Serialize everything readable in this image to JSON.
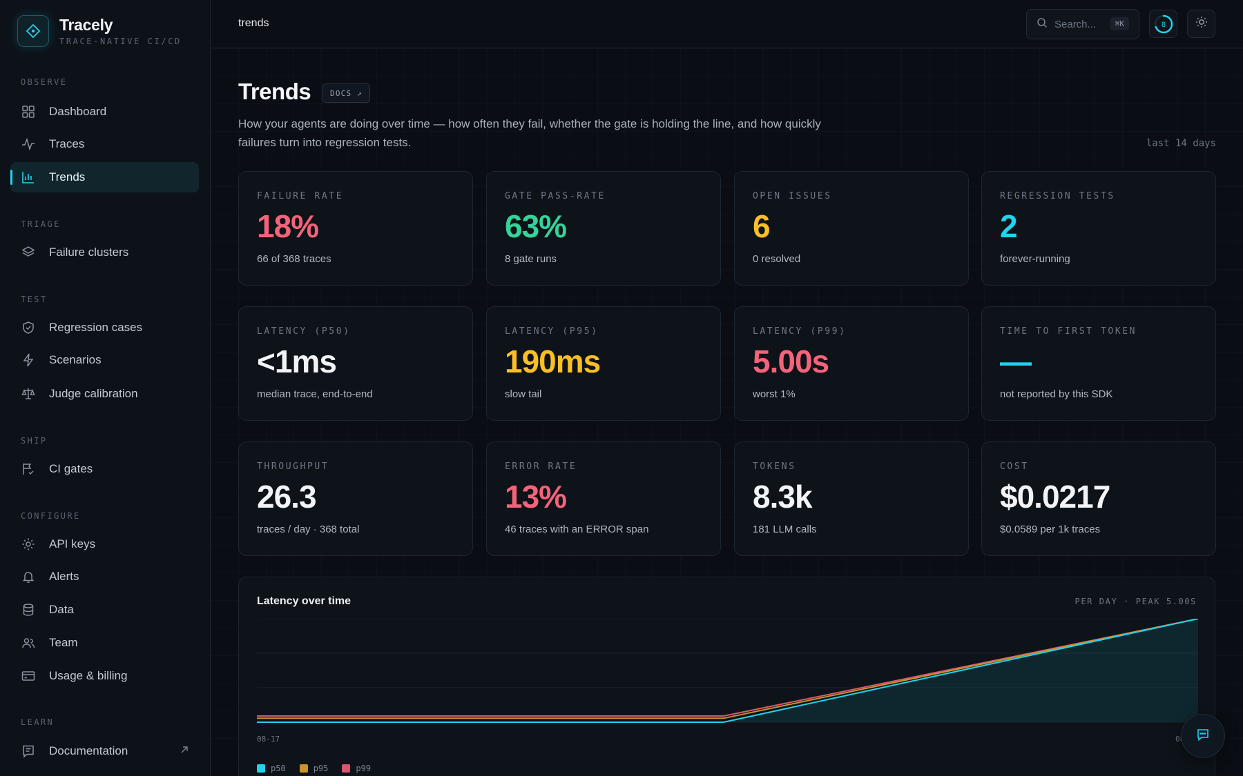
{
  "brand": {
    "name": "Tracely",
    "tagline": "TRACE-NATIVE CI/CD"
  },
  "sidebar": {
    "sections": [
      {
        "title": "OBSERVE",
        "items": [
          {
            "label": "Dashboard",
            "icon": "grid-icon"
          },
          {
            "label": "Traces",
            "icon": "pulse-icon"
          },
          {
            "label": "Trends",
            "icon": "bar-chart-icon",
            "active": true
          }
        ]
      },
      {
        "title": "TRIAGE",
        "items": [
          {
            "label": "Failure clusters",
            "icon": "layers-icon"
          }
        ]
      },
      {
        "title": "TEST",
        "items": [
          {
            "label": "Regression cases",
            "icon": "shield-check-icon"
          },
          {
            "label": "Scenarios",
            "icon": "bolt-icon"
          },
          {
            "label": "Judge calibration",
            "icon": "scale-icon"
          }
        ]
      },
      {
        "title": "SHIP",
        "items": [
          {
            "label": "CI gates",
            "icon": "flag-check-icon"
          }
        ]
      },
      {
        "title": "CONFIGURE",
        "items": [
          {
            "label": "API keys",
            "icon": "gear-icon"
          },
          {
            "label": "Alerts",
            "icon": "bell-icon"
          },
          {
            "label": "Data",
            "icon": "database-icon"
          },
          {
            "label": "Team",
            "icon": "users-icon"
          },
          {
            "label": "Usage & billing",
            "icon": "card-icon"
          }
        ]
      },
      {
        "title": "LEARN",
        "items": [
          {
            "label": "Documentation",
            "icon": "doc-icon",
            "external": true
          }
        ]
      }
    ]
  },
  "topbar": {
    "breadcrumb": "trends",
    "search_placeholder": "Search...",
    "search_shortcut": "⌘K",
    "notification_count": "8"
  },
  "page": {
    "title": "Trends",
    "docs_label": "DOCS ↗",
    "description": "How your agents are doing over time — how often they fail, whether the gate is holding the line, and how quickly failures turn into regression tests.",
    "range_label": "last 14 days"
  },
  "metrics": [
    {
      "label": "FAILURE RATE",
      "value": "18%",
      "sub": "66 of 368 traces",
      "color": "#f4637a"
    },
    {
      "label": "GATE PASS-RATE",
      "value": "63%",
      "sub": "8 gate runs",
      "color": "#34d399"
    },
    {
      "label": "OPEN ISSUES",
      "value": "6",
      "sub": "0 resolved",
      "color": "#fbbf24"
    },
    {
      "label": "REGRESSION TESTS",
      "value": "2",
      "sub": "forever-running",
      "color": "#22d3ee"
    },
    {
      "label": "LATENCY (P50)",
      "value": "<1ms",
      "sub": "median trace, end-to-end",
      "color": "#f2f4f7"
    },
    {
      "label": "LATENCY (P95)",
      "value": "190ms",
      "sub": "slow tail",
      "color": "#fbbf24"
    },
    {
      "label": "LATENCY (P99)",
      "value": "5.00s",
      "sub": "worst 1%",
      "color": "#f4637a"
    },
    {
      "label": "TIME TO FIRST TOKEN",
      "value": "—",
      "sub": "not reported by this SDK",
      "color": "#22d3ee"
    },
    {
      "label": "THROUGHPUT",
      "value": "26.3",
      "sub": "traces / day · 368 total",
      "color": "#f2f4f7"
    },
    {
      "label": "ERROR RATE",
      "value": "13%",
      "sub": "46 traces with an ERROR span",
      "color": "#f4637a"
    },
    {
      "label": "TOKENS",
      "value": "8.3k",
      "sub": "181 LLM calls",
      "color": "#f2f4f7"
    },
    {
      "label": "COST",
      "value": "$0.0217",
      "sub": "$0.0589 per 1k traces",
      "color": "#f2f4f7"
    }
  ],
  "chart": {
    "title": "Latency over time",
    "meta": "PER DAY · PEAK 5.00S",
    "x_start_label": "08-17",
    "x_end_label": "08-",
    "legend": [
      {
        "name": "p50",
        "color": "#22d3ee"
      },
      {
        "name": "p95",
        "color": "#c6962a"
      },
      {
        "name": "p99",
        "color": "#d9576e"
      }
    ]
  },
  "chart_data": {
    "type": "line",
    "title": "Latency over time",
    "x": [
      "08-17",
      "",
      "08-"
    ],
    "series": [
      {
        "name": "p50",
        "values": [
          0.0,
          0.0,
          5.0
        ]
      },
      {
        "name": "p95",
        "values": [
          0.19,
          0.19,
          5.0
        ]
      },
      {
        "name": "p99",
        "values": [
          0.3,
          0.3,
          5.0
        ]
      }
    ],
    "ylim": [
      0,
      5.0
    ],
    "grid": true,
    "legend": "bottom-left"
  }
}
